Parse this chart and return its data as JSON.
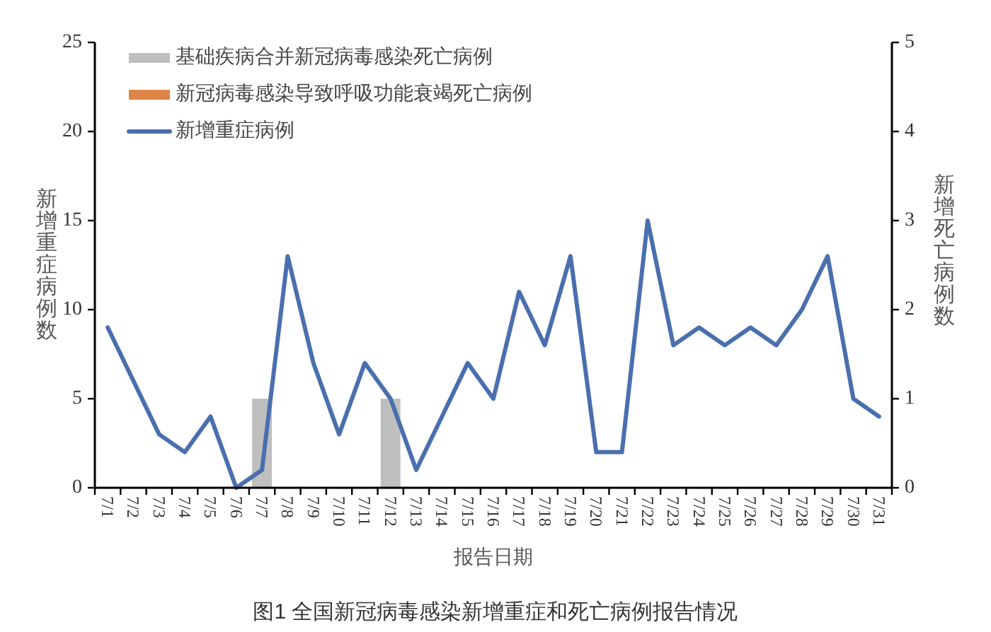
{
  "chart_data": {
    "type": "bar",
    "xlabel": "报告日期",
    "ylabel": "新增重症病例数",
    "y2label": "新增死亡病例数",
    "annotations": [
      "图1 全国新冠病毒感染新增重症和死亡病例报告情况"
    ],
    "categories": [
      "7/1",
      "7/2",
      "7/3",
      "7/4",
      "7/5",
      "7/6",
      "7/7",
      "7/8",
      "7/9",
      "7/10",
      "7/11",
      "7/12",
      "7/13",
      "7/14",
      "7/15",
      "7/16",
      "7/17",
      "7/18",
      "7/19",
      "7/20",
      "7/21",
      "7/22",
      "7/23",
      "7/24",
      "7/25",
      "7/26",
      "7/27",
      "7/28",
      "7/29",
      "7/30",
      "7/31"
    ],
    "series": [
      {
        "name": "基础疾病合并新冠病毒感染死亡病例",
        "axis": "y2",
        "color": "#bfbfbf",
        "values": [
          0,
          0,
          0,
          0,
          0,
          0,
          1,
          0,
          0,
          0,
          0,
          1,
          0,
          0,
          0,
          0,
          0,
          0,
          0,
          0,
          0,
          0,
          0,
          0,
          0,
          0,
          0,
          0,
          0,
          0,
          0
        ]
      },
      {
        "name": "新冠病毒感染导致呼吸功能衰竭死亡病例",
        "axis": "y2",
        "color": "#dd8447",
        "values": [
          0,
          0,
          0,
          0,
          0,
          0,
          0,
          0,
          0,
          0,
          0,
          0,
          0,
          0,
          0,
          0,
          0,
          0,
          0,
          0,
          0,
          0,
          0,
          0,
          0,
          0,
          0,
          0,
          0,
          0,
          0
        ]
      },
      {
        "name": "新增重症病例",
        "type": "line",
        "color": "#4a6fae",
        "values": [
          9,
          6,
          3,
          2,
          4,
          0,
          1,
          13,
          7,
          3,
          7,
          5,
          1,
          4,
          7,
          5,
          11,
          8,
          13,
          2,
          2,
          15,
          8,
          9,
          8,
          9,
          8,
          10,
          13,
          5,
          4
        ]
      }
    ],
    "stacked": true,
    "ylim": [
      0,
      25
    ],
    "yticks": [
      0,
      5,
      10,
      15,
      20,
      25
    ],
    "y2lim": [
      0,
      5
    ],
    "y2ticks": [
      0,
      1,
      2,
      3,
      4,
      5
    ],
    "legend": "top left"
  }
}
